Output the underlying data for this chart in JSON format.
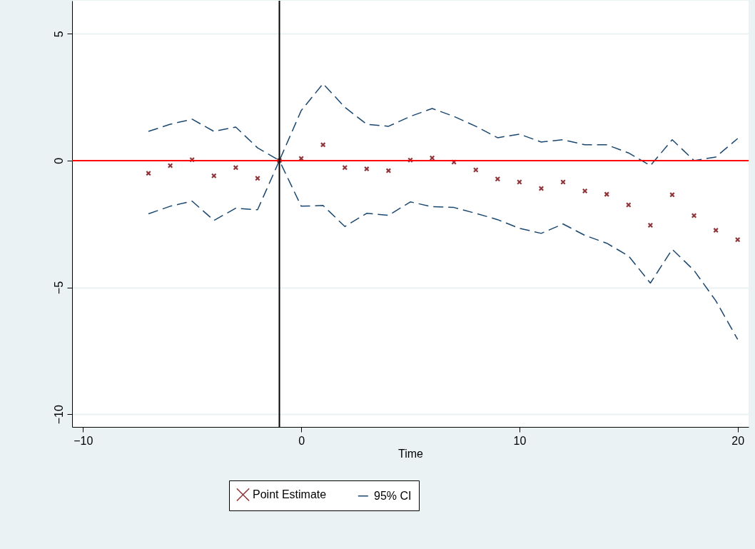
{
  "chart_data": {
    "type": "scatter",
    "xlabel": "Time",
    "x": [
      -7,
      -6,
      -5,
      -4,
      -3,
      -2,
      -1,
      0,
      1,
      2,
      3,
      4,
      5,
      6,
      7,
      8,
      9,
      10,
      11,
      12,
      13,
      14,
      15,
      16,
      17,
      18,
      19,
      20
    ],
    "series": [
      {
        "name": "Point Estimate",
        "marker": "cross",
        "color": "#90353b",
        "values": [
          -0.5,
          -0.2,
          0.03,
          -0.6,
          -0.28,
          -0.7,
          0,
          0.08,
          0.62,
          -0.28,
          -0.33,
          -0.4,
          0.02,
          0.1,
          -0.06,
          -0.37,
          -0.73,
          -0.85,
          -1.1,
          -0.85,
          -1.2,
          -1.33,
          -1.75,
          -2.55,
          -1.35,
          -2.17,
          -2.75,
          -3.12
        ]
      },
      {
        "name": "95% CI",
        "type": "line",
        "line_style": "dashed",
        "color": "#1a476f",
        "values": [
          1.15,
          1.43,
          1.63,
          1.15,
          1.32,
          0.5,
          0,
          1.97,
          3.03,
          2.1,
          1.43,
          1.35,
          1.74,
          2.05,
          1.74,
          1.35,
          0.9,
          1.04,
          0.73,
          0.82,
          0.62,
          0.62,
          0.3,
          -0.2,
          0.82,
          0,
          0.14,
          0.87
        ]
      },
      {
        "type": "line",
        "line_style": "dashed",
        "color": "#1a476f",
        "values": [
          -2.1,
          -1.8,
          -1.6,
          -2.36,
          -1.88,
          -1.94,
          0,
          -1.8,
          -1.77,
          -2.6,
          -2.08,
          -2.16,
          -1.63,
          -1.82,
          -1.85,
          -2.08,
          -2.33,
          -2.67,
          -2.87,
          -2.5,
          -2.95,
          -3.26,
          -3.76,
          -4.83,
          -3.5,
          -4.33,
          -5.53,
          -7.05
        ]
      }
    ],
    "xlim": [
      -10.5,
      20.5
    ],
    "xticks": [
      -10,
      0,
      10,
      20
    ],
    "ylim": [
      -10.5,
      6.3
    ],
    "yticks": [
      -10,
      -5,
      0,
      5
    ],
    "ref_lines": [
      {
        "axis": "y",
        "value": 0,
        "color": "#ff0000"
      },
      {
        "axis": "x",
        "value": -1,
        "color": "#000000"
      }
    ],
    "grid": "y",
    "legend": "bottom"
  }
}
